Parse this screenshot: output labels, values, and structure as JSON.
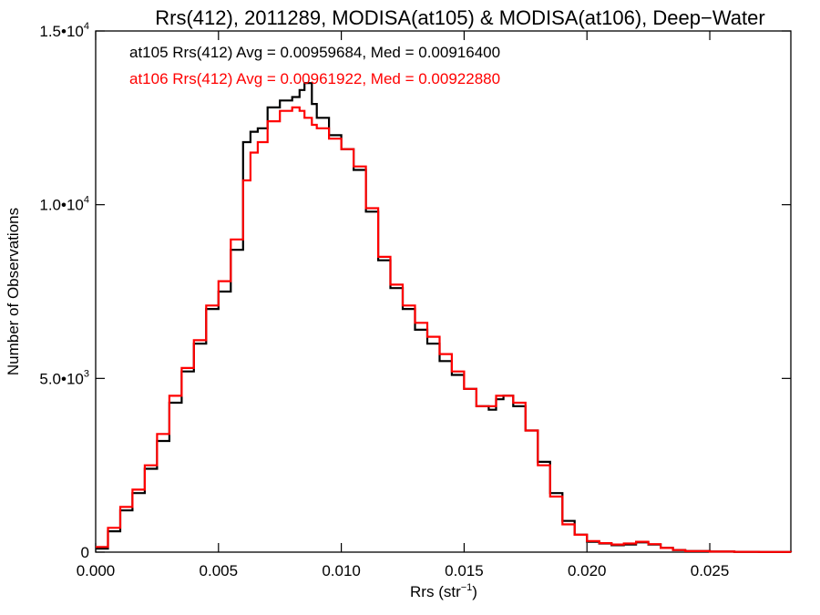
{
  "chart_data": {
    "type": "line",
    "step": true,
    "title": "Rrs(412), 2011289, MODISA(at105) & MODISA(at106), Deep−Water",
    "xlabel": {
      "text": "Rrs (str",
      "sup": "−1",
      "close": ")"
    },
    "ylabel": "Number of Observations",
    "xlim": [
      0.0,
      0.0283
    ],
    "ylim": [
      0,
      15000
    ],
    "x_ticks": [
      {
        "value": 0.0,
        "label": "0.000"
      },
      {
        "value": 0.005,
        "label": "0.005"
      },
      {
        "value": 0.01,
        "label": "0.010"
      },
      {
        "value": 0.015,
        "label": "0.015"
      },
      {
        "value": 0.02,
        "label": "0.020"
      },
      {
        "value": 0.025,
        "label": "0.025"
      }
    ],
    "y_ticks": [
      {
        "value": 0,
        "mant": "0",
        "exp": ""
      },
      {
        "value": 5000,
        "mant": "5.0•10",
        "exp": "3"
      },
      {
        "value": 10000,
        "mant": "1.0•10",
        "exp": "4"
      },
      {
        "value": 15000,
        "mant": "1.5•10",
        "exp": "4"
      }
    ],
    "grid": false,
    "series": [
      {
        "name": "at105 Rrs(412) Avg = 0.00959684, Med = 0.00916400",
        "color": "#000000",
        "x": [
          0.0,
          0.0005,
          0.001,
          0.0015,
          0.002,
          0.0025,
          0.003,
          0.0035,
          0.004,
          0.0045,
          0.005,
          0.0055,
          0.006,
          0.0063,
          0.0066,
          0.007,
          0.0075,
          0.008,
          0.0083,
          0.0085,
          0.0088,
          0.009,
          0.0095,
          0.01,
          0.0105,
          0.011,
          0.0115,
          0.012,
          0.0125,
          0.013,
          0.0135,
          0.014,
          0.0145,
          0.015,
          0.0155,
          0.016,
          0.0163,
          0.0166,
          0.017,
          0.0175,
          0.018,
          0.0185,
          0.019,
          0.0195,
          0.02,
          0.0205,
          0.021,
          0.0215,
          0.022,
          0.0225,
          0.023,
          0.0235,
          0.024,
          0.025,
          0.026,
          0.027,
          0.0283
        ],
        "values": [
          100,
          600,
          1200,
          1700,
          2400,
          3200,
          4300,
          5200,
          6000,
          7000,
          7500,
          8700,
          11800,
          12100,
          12200,
          12800,
          13000,
          13100,
          13300,
          13500,
          12900,
          12500,
          12000,
          11600,
          11000,
          9800,
          8400,
          7600,
          7000,
          6400,
          6000,
          5500,
          5100,
          4700,
          4200,
          4100,
          4400,
          4500,
          4200,
          3500,
          2600,
          1700,
          900,
          500,
          300,
          250,
          200,
          220,
          280,
          220,
          120,
          60,
          30,
          15,
          8,
          5,
          3
        ]
      },
      {
        "name": "at106 Rrs(412) Avg = 0.00961922, Med = 0.00922880",
        "color": "#ff0000",
        "x": [
          0.0,
          0.0005,
          0.001,
          0.0015,
          0.002,
          0.0025,
          0.003,
          0.0035,
          0.004,
          0.0045,
          0.005,
          0.0055,
          0.006,
          0.0063,
          0.0066,
          0.007,
          0.0075,
          0.008,
          0.0083,
          0.0085,
          0.0088,
          0.009,
          0.0095,
          0.01,
          0.0105,
          0.011,
          0.0115,
          0.012,
          0.0125,
          0.013,
          0.0135,
          0.014,
          0.0145,
          0.015,
          0.0155,
          0.016,
          0.0163,
          0.0166,
          0.017,
          0.0175,
          0.018,
          0.0185,
          0.019,
          0.0195,
          0.02,
          0.0205,
          0.021,
          0.0215,
          0.022,
          0.0225,
          0.023,
          0.0235,
          0.024,
          0.025,
          0.026,
          0.027,
          0.0283
        ],
        "values": [
          150,
          700,
          1300,
          1800,
          2500,
          3400,
          4500,
          5300,
          6100,
          7100,
          7800,
          9000,
          10700,
          11500,
          11800,
          12400,
          12700,
          12800,
          12700,
          12500,
          12300,
          12200,
          11900,
          11600,
          11100,
          9900,
          8500,
          7700,
          7100,
          6600,
          6200,
          5700,
          5200,
          4700,
          4200,
          4200,
          4500,
          4500,
          4300,
          3500,
          2500,
          1600,
          800,
          500,
          320,
          260,
          220,
          250,
          300,
          230,
          120,
          60,
          30,
          15,
          8,
          5,
          3
        ]
      }
    ]
  }
}
